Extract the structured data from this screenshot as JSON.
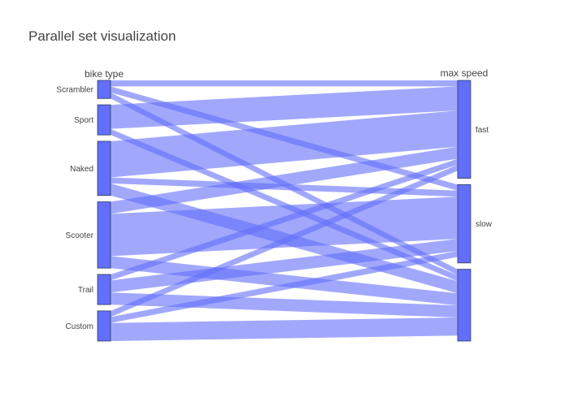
{
  "chart_data": {
    "type": "parallel_categories",
    "title": "Parallel set visualization",
    "colors": {
      "bar": "#636efa",
      "bar_stroke": "#2a3f5f",
      "ribbon": "#636efa"
    },
    "dimensions": [
      {
        "label": "bike type",
        "categories": [
          "Scrambler",
          "Sport",
          "Naked",
          "Scooter",
          "Trail",
          "Custom"
        ]
      },
      {
        "label": "max speed",
        "categories": [
          "fast",
          "slow",
          ""
        ]
      }
    ],
    "flows": [
      {
        "from": "Scrambler",
        "to": "fast",
        "value": 1
      },
      {
        "from": "Scrambler",
        "to": "slow",
        "value": 1
      },
      {
        "from": "Scrambler",
        "to": "",
        "value": 1
      },
      {
        "from": "Sport",
        "to": "fast",
        "value": 4
      },
      {
        "from": "Sport",
        "to": "",
        "value": 1
      },
      {
        "from": "Naked",
        "to": "fast",
        "value": 6
      },
      {
        "from": "Naked",
        "to": "slow",
        "value": 1
      },
      {
        "from": "Naked",
        "to": "",
        "value": 2
      },
      {
        "from": "Scooter",
        "to": "fast",
        "value": 2
      },
      {
        "from": "Scooter",
        "to": "slow",
        "value": 7
      },
      {
        "from": "Scooter",
        "to": "",
        "value": 2
      },
      {
        "from": "Trail",
        "to": "fast",
        "value": 1
      },
      {
        "from": "Trail",
        "to": "slow",
        "value": 2
      },
      {
        "from": "Trail",
        "to": "",
        "value": 2
      },
      {
        "from": "Custom",
        "to": "fast",
        "value": 1
      },
      {
        "from": "Custom",
        "to": "slow",
        "value": 1
      },
      {
        "from": "Custom",
        "to": "",
        "value": 3
      }
    ]
  }
}
